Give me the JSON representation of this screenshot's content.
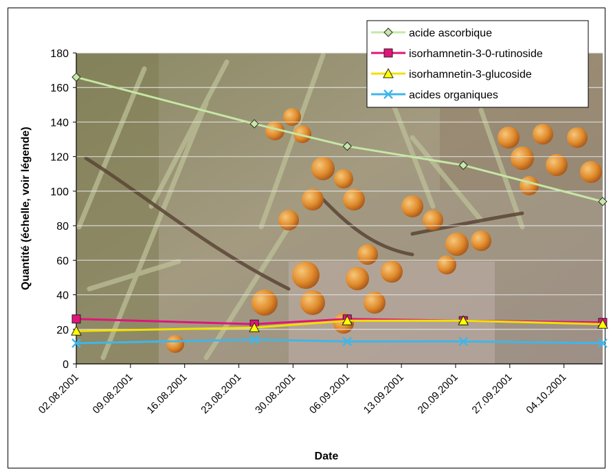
{
  "chart_data": {
    "type": "line",
    "xlabel": "Date",
    "ylabel": "Quantité (échelle, voir légende)",
    "ylim": [
      0,
      180
    ],
    "yticks": [
      "0",
      "20",
      "40",
      "60",
      "80",
      "100",
      "120",
      "140",
      "160",
      "180"
    ],
    "xlim": [
      "2001-08-02",
      "2001-10-09"
    ],
    "xticks": [
      "02.08.2001",
      "09.08.2001",
      "16.08.2001",
      "23.08.2001",
      "30.08.2001",
      "06.09.2001",
      "13.09.2001",
      "20.09.2001",
      "27.09.2001",
      "04.10.2001"
    ],
    "x": [
      "2001-08-02",
      "2001-08-25",
      "2001-09-06",
      "2001-09-21",
      "2001-10-09"
    ],
    "grid": true,
    "background": "photo of sea buckthorn (argousier) branches with orange berries",
    "legend_position": "top-right",
    "series": [
      {
        "name": "acide ascorbique",
        "values": [
          166,
          139,
          126,
          115,
          94
        ],
        "color": "#c6e7a6",
        "marker": "diamond",
        "marker_color": "#c6e7a6"
      },
      {
        "name": "isorhamnetin-3-0-rutinoside",
        "values": [
          26,
          23,
          26,
          25,
          24
        ],
        "color": "#e0157a",
        "marker": "square",
        "marker_color": "#e0157a"
      },
      {
        "name": "isorhamnetin-3-glucoside",
        "values": [
          19,
          21,
          25,
          25,
          23
        ],
        "color": "#f2e000",
        "marker": "triangle",
        "marker_color": "#ffff00"
      },
      {
        "name": "acides organiques",
        "values": [
          12,
          14,
          13,
          13,
          12
        ],
        "color": "#3fb6ea",
        "marker": "x",
        "marker_color": "#3fb6ea"
      }
    ]
  }
}
